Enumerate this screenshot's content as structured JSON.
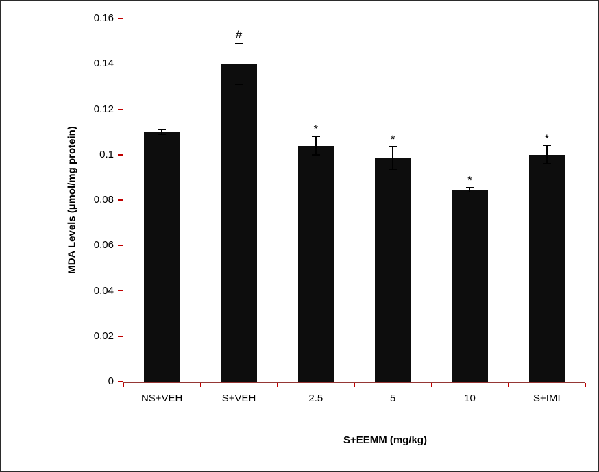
{
  "figure": {
    "border_color": "#2b2b2b",
    "background": "#ffffff"
  },
  "chart_data": {
    "type": "bar",
    "title": "",
    "categories": [
      "NS+VEH",
      "S+VEH",
      "2.5",
      "5",
      "10",
      "S+IMI"
    ],
    "values": [
      0.11,
      0.14,
      0.104,
      0.0985,
      0.0845,
      0.1
    ],
    "errors": [
      0.001,
      0.009,
      0.004,
      0.005,
      0.001,
      0.004
    ],
    "annotations": [
      "",
      "#",
      "*",
      "*",
      "*",
      "*"
    ],
    "xlabel": "S+EEMM (mg/kg)",
    "ylabel": "MDA Levels (µmol/mg protein)",
    "ylim": [
      0,
      0.16
    ],
    "ytick_step": 0.02,
    "yticks": [
      "0",
      "0.02",
      "0.04",
      "0.06",
      "0.08",
      "0.1",
      "0.12",
      "0.14",
      "0.16"
    ],
    "grid": false,
    "legend": null,
    "bar_color": "#0d0d0d",
    "axis_color": "#953735",
    "tick_color": "#c00000",
    "error_color": "#000000"
  }
}
